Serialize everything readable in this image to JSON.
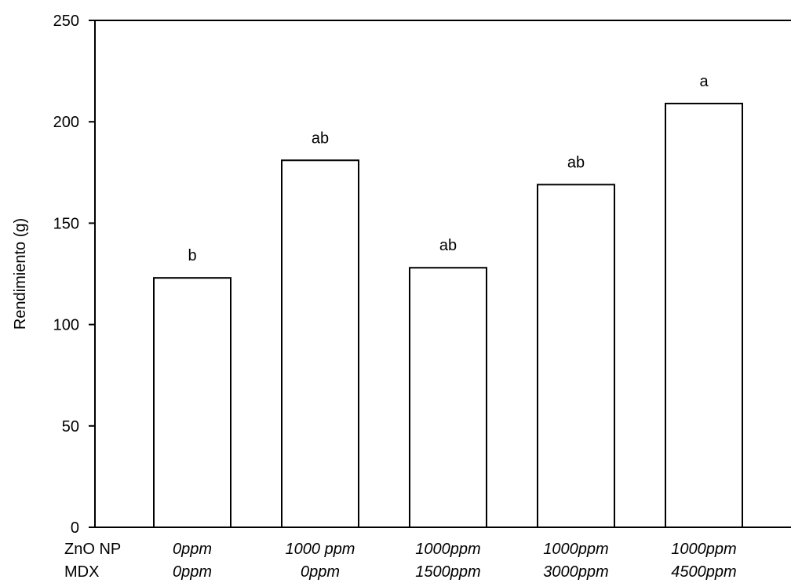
{
  "chart_data": {
    "type": "bar",
    "title": "",
    "xlabel": "",
    "ylabel": "Rendimiento (g)",
    "ylim": [
      0,
      250
    ],
    "yticks": [
      0,
      50,
      100,
      150,
      200,
      250
    ],
    "grid": false,
    "legend": "none",
    "bar_fill": "#ffffff",
    "bar_stroke": "#000000",
    "row_labels": [
      "ZnO NP",
      "MDX"
    ],
    "categories": [
      {
        "zno": "0ppm",
        "mdx": "0ppm"
      },
      {
        "zno": "1000 ppm",
        "mdx": "0ppm"
      },
      {
        "zno": "1000ppm",
        "mdx": "1500ppm"
      },
      {
        "zno": "1000ppm",
        "mdx": "3000ppm"
      },
      {
        "zno": "1000ppm",
        "mdx": "4500ppm"
      }
    ],
    "values": [
      123,
      181,
      128,
      169,
      209
    ],
    "data_labels": [
      "b",
      "ab",
      "ab",
      "ab",
      "a"
    ]
  }
}
